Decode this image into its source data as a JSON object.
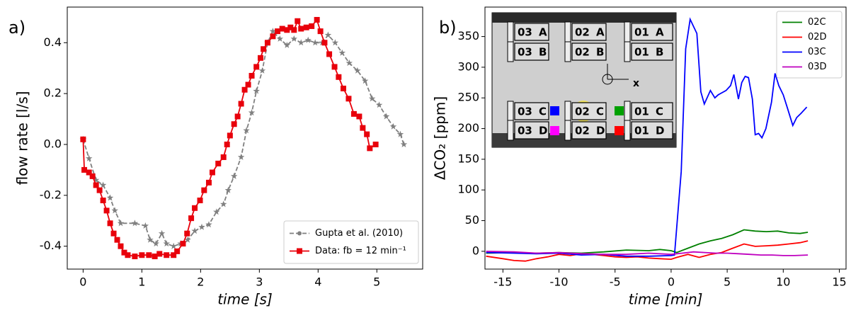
{
  "chart_data": [
    {
      "type": "line",
      "panel_label": "a)",
      "xlabel": "time [s]",
      "ylabel": "flow rate [l/s]",
      "xlim": [
        -0.27,
        5.78
      ],
      "ylim": [
        -0.49,
        0.54
      ],
      "xticks": [
        0,
        1,
        2,
        3,
        4,
        5
      ],
      "yticks": [
        -0.4,
        -0.2,
        {
          "value": 0,
          "label": "0.0"
        },
        0.2,
        0.4
      ],
      "legend": "lower right",
      "series": [
        {
          "name": "Gupta et al. (2010)",
          "color": "#808080",
          "marker": "star",
          "dashed": true,
          "x": [
            0,
            0.1,
            0.22,
            0.34,
            0.46,
            0.54,
            0.64,
            0.88,
            1.06,
            1.14,
            1.24,
            1.34,
            1.42,
            1.54,
            1.66,
            1.78,
            1.9,
            2.02,
            2.14,
            2.27,
            2.39,
            2.47,
            2.57,
            2.69,
            2.78,
            2.87,
            2.95,
            3.05,
            3.14,
            3.23,
            3.35,
            3.47,
            3.59,
            3.71,
            3.83,
            3.95,
            4.07,
            4.17,
            4.29,
            4.41,
            4.53,
            4.67,
            4.8,
            4.92,
            5.04,
            5.16,
            5.28,
            5.4,
            5.46
          ],
          "values": [
            0.02,
            -0.055,
            -0.14,
            -0.16,
            -0.21,
            -0.26,
            -0.31,
            -0.31,
            -0.32,
            -0.375,
            -0.39,
            -0.35,
            -0.39,
            -0.4,
            -0.39,
            -0.375,
            -0.34,
            -0.325,
            -0.315,
            -0.265,
            -0.235,
            -0.18,
            -0.125,
            -0.05,
            0.055,
            0.125,
            0.21,
            0.29,
            0.4,
            0.445,
            0.415,
            0.39,
            0.415,
            0.4,
            0.41,
            0.4,
            0.4,
            0.43,
            0.4,
            0.36,
            0.32,
            0.29,
            0.25,
            0.18,
            0.155,
            0.11,
            0.07,
            0.04,
            0.0
          ]
        },
        {
          "name": "Data: fb = 12 min⁻¹",
          "color": "#e8000b",
          "marker": "square",
          "dashed": false,
          "x": [
            0,
            0.02,
            0.1,
            0.16,
            0.22,
            0.28,
            0.34,
            0.4,
            0.46,
            0.52,
            0.58,
            0.64,
            0.7,
            0.76,
            0.88,
            1.0,
            1.12,
            1.22,
            1.3,
            1.42,
            1.54,
            1.6,
            1.7,
            1.77,
            1.84,
            1.9,
            1.99,
            2.06,
            2.14,
            2.2,
            2.3,
            2.39,
            2.45,
            2.5,
            2.57,
            2.63,
            2.69,
            2.75,
            2.81,
            2.87,
            2.95,
            3.02,
            3.07,
            3.14,
            3.23,
            3.31,
            3.39,
            3.47,
            3.53,
            3.59,
            3.65,
            3.71,
            3.8,
            3.89,
            3.98,
            4.04,
            4.11,
            4.19,
            4.28,
            4.35,
            4.43,
            4.52,
            4.61,
            4.7,
            4.76,
            4.83,
            4.88,
            4.98
          ],
          "values": [
            0.02,
            -0.1,
            -0.11,
            -0.125,
            -0.16,
            -0.18,
            -0.22,
            -0.26,
            -0.31,
            -0.35,
            -0.375,
            -0.4,
            -0.425,
            -0.435,
            -0.44,
            -0.435,
            -0.435,
            -0.44,
            -0.43,
            -0.435,
            -0.435,
            -0.42,
            -0.39,
            -0.35,
            -0.29,
            -0.25,
            -0.22,
            -0.18,
            -0.15,
            -0.11,
            -0.075,
            -0.05,
            0.0,
            0.035,
            0.08,
            0.11,
            0.16,
            0.215,
            0.235,
            0.27,
            0.305,
            0.34,
            0.375,
            0.4,
            0.425,
            0.445,
            0.455,
            0.45,
            0.46,
            0.45,
            0.485,
            0.455,
            0.46,
            0.465,
            0.49,
            0.445,
            0.4,
            0.355,
            0.305,
            0.265,
            0.22,
            0.18,
            0.12,
            0.11,
            0.065,
            0.04,
            -0.015,
            0.0
          ]
        }
      ]
    },
    {
      "type": "line",
      "panel_label": "b)",
      "xlabel": "time [min]",
      "ylabel": "ΔCO₂ [ppm]",
      "xlim": [
        -16.6,
        15.6
      ],
      "ylim": [
        -29,
        398
      ],
      "xticks": [
        -15,
        -10,
        -5,
        0,
        5,
        10,
        15
      ],
      "yticks": [
        0,
        50,
        100,
        150,
        200,
        250,
        300,
        350
      ],
      "legend": "upper right",
      "series": [
        {
          "name": "02C",
          "color": "#008000",
          "marker": "none",
          "dashed": false,
          "x": [
            -16.5,
            -14,
            -12,
            -10,
            -8,
            -6,
            -4,
            -2,
            -1,
            0,
            0.5,
            1.5,
            2.5,
            3.5,
            4.5,
            5.5,
            6.5,
            7.5,
            8.5,
            9.5,
            10.5,
            11.5,
            12.2
          ],
          "values": [
            -3,
            -2,
            -3,
            -2,
            -3,
            -1,
            2,
            1,
            3,
            1,
            -2,
            5,
            12,
            17,
            21,
            27,
            35,
            33,
            32,
            33,
            30,
            29,
            31
          ]
        },
        {
          "name": "02D",
          "color": "#ff0000",
          "marker": "none",
          "dashed": false,
          "x": [
            -16.5,
            -15,
            -14,
            -13,
            -12,
            -11,
            -10,
            -9,
            -8,
            -7,
            -6,
            -5,
            -4,
            -3,
            -2,
            -1,
            0,
            0.5,
            1.5,
            2.5,
            3.5,
            4.5,
            5.5,
            6.5,
            7.5,
            8.5,
            9.5,
            10.5,
            11.5,
            12.2
          ],
          "values": [
            -8,
            -12,
            -15,
            -16,
            -12,
            -9,
            -5,
            -7,
            -4,
            -5,
            -7,
            -9,
            -10,
            -9,
            -11,
            -12,
            -13,
            -10,
            -5,
            -10,
            -5,
            -2,
            5,
            12,
            8,
            9,
            10,
            12,
            14,
            17
          ]
        },
        {
          "name": "03C",
          "color": "#0000ff",
          "marker": "none",
          "dashed": false,
          "x": [
            -16.5,
            -14,
            -12,
            -10,
            -8,
            -6,
            -4,
            -2,
            0,
            0.3,
            0.9,
            1.3,
            1.7,
            2.3,
            2.65,
            2.96,
            3.5,
            3.9,
            4.2,
            4.9,
            5.3,
            5.6,
            6.0,
            6.3,
            6.6,
            6.9,
            7.25,
            7.5,
            7.8,
            8.1,
            8.45,
            8.95,
            9.27,
            9.6,
            10.0,
            10.4,
            10.85,
            11.2,
            11.6,
            12.1
          ],
          "values": [
            -2,
            -3,
            -4,
            -3,
            -6,
            -5,
            -8,
            -8,
            -7,
            -6,
            130,
            330,
            378,
            355,
            260,
            240,
            262,
            250,
            255,
            262,
            270,
            288,
            248,
            275,
            285,
            283,
            248,
            190,
            192,
            185,
            200,
            243,
            290,
            270,
            255,
            232,
            205,
            218,
            225,
            235
          ]
        },
        {
          "name": "03D",
          "color": "#bf00bf",
          "marker": "none",
          "dashed": false,
          "x": [
            -16.5,
            -14,
            -12,
            -10,
            -8,
            -6,
            -4,
            -2,
            0,
            1,
            2,
            3,
            4,
            5,
            6,
            7,
            8,
            9,
            10,
            11,
            12.2
          ],
          "values": [
            0,
            -1,
            -3,
            -2,
            -4,
            -5,
            -5,
            -3,
            -5,
            -3,
            -1,
            -2,
            -3,
            -3,
            -4,
            -5,
            -6,
            -6,
            -7,
            -7,
            -6
          ]
        }
      ]
    }
  ],
  "inset": {
    "rows": [
      [
        "03",
        "A",
        "02",
        "A",
        "01",
        "A"
      ],
      [
        "03",
        "B",
        "02",
        "B",
        "01",
        "B"
      ],
      [
        "03",
        "C",
        "02",
        "C",
        "01",
        "C"
      ],
      [
        "03",
        "D",
        "02",
        "D",
        "01",
        "D"
      ]
    ],
    "axis_label": "x"
  }
}
